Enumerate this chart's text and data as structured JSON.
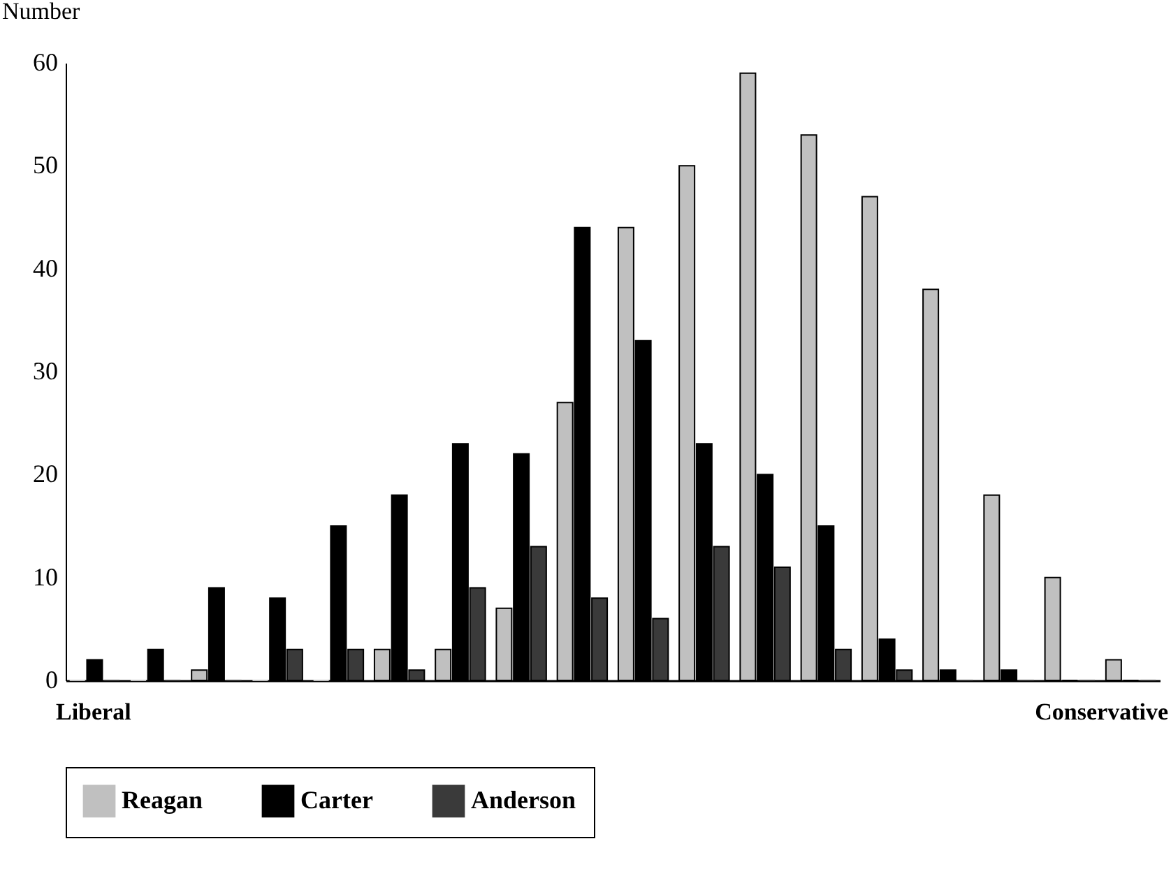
{
  "chart_data": {
    "type": "bar",
    "ylabel": "Number",
    "categories": [
      null,
      null,
      null,
      null,
      null,
      null,
      null,
      null,
      null,
      null,
      null,
      null,
      null,
      null,
      null,
      null,
      null,
      null
    ],
    "series": [
      {
        "name": "Reagan",
        "color": "#c0c0c0",
        "values": [
          0,
          0,
          1,
          0,
          0,
          3,
          3,
          7,
          27,
          44,
          50,
          59,
          53,
          47,
          38,
          18,
          10,
          2
        ]
      },
      {
        "name": "Carter",
        "color": "#000000",
        "values": [
          2,
          3,
          9,
          8,
          15,
          18,
          23,
          22,
          44,
          33,
          23,
          20,
          15,
          4,
          1,
          1,
          0,
          0
        ]
      },
      {
        "name": "Anderson",
        "color": "#3a3a3a",
        "values": [
          0,
          0,
          0,
          3,
          3,
          1,
          9,
          13,
          8,
          6,
          13,
          11,
          3,
          1,
          0,
          0,
          0,
          0
        ]
      }
    ],
    "ylim": [
      0,
      60
    ],
    "yticks": [
      0,
      10,
      20,
      30,
      40,
      50,
      60
    ],
    "grid": false,
    "legend": "bottom",
    "annotations": [
      "Liberal",
      "Conservative"
    ]
  }
}
